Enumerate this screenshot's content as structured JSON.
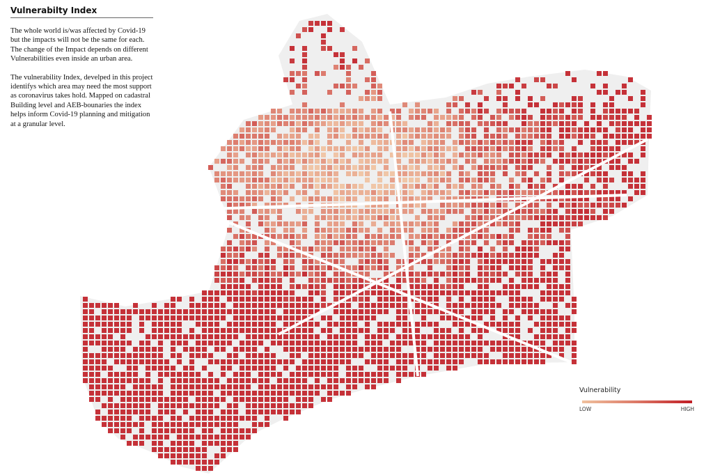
{
  "intro": {
    "title": "Vulnerabilty Index",
    "paragraphs": [
      "The whole world is/was affected by Covid-19 but the impacts will not be the same for each. The change of the Impact depends on different Vulnerabilities even inside an urban area.",
      "The vulnerability Index, develped in this project identifys which area may need the most support as coronavirus takes hold. Mapped on cadastral Building level and AEB-bounaries the index helps inform Covid-19 planning and mitigation at a granular level."
    ]
  },
  "legend": {
    "title": "Vulnerability",
    "low_label": "LOW",
    "high_label": "HIGH",
    "colors": {
      "low": "#f0c19e",
      "mid": "#dc7866",
      "high": "#c01c24"
    }
  },
  "map": {
    "background_color": "#efefef",
    "street_color": "#ffffff"
  }
}
